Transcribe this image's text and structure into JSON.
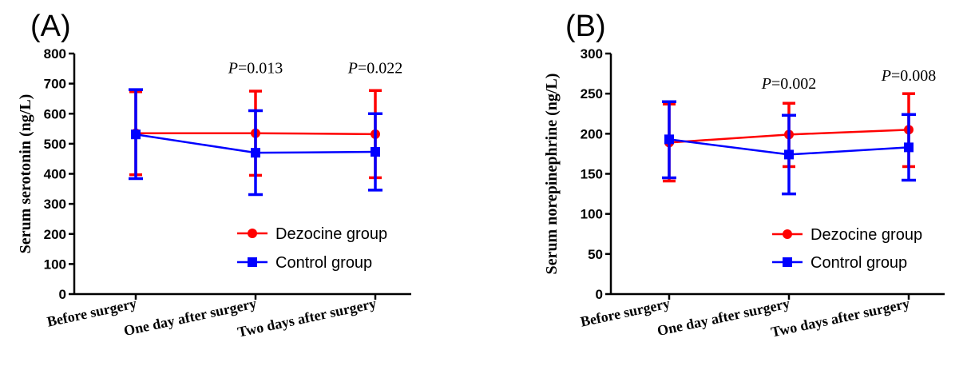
{
  "chart_data": [
    {
      "panel_label": "(A)",
      "type": "line",
      "ylabel": "Serum serotonin (ng/L)",
      "ylim": [
        0,
        800
      ],
      "yticks": [
        0,
        100,
        200,
        300,
        400,
        500,
        600,
        700,
        800
      ],
      "categories": [
        "Before surgery",
        "One day after surgery",
        "Two days after surgery"
      ],
      "series": [
        {
          "name": "Dezocine group",
          "color": "#ff0000",
          "marker": "circle",
          "values": [
            535,
            535,
            532
          ],
          "upper": [
            673,
            675,
            677
          ],
          "lower": [
            397,
            395,
            387
          ]
        },
        {
          "name": "Control group",
          "color": "#0000ff",
          "marker": "square",
          "values": [
            531,
            470,
            473
          ],
          "upper": [
            680,
            610,
            600
          ],
          "lower": [
            384,
            331,
            346
          ]
        }
      ],
      "annotations": [
        {
          "category_index": 1,
          "prefix": "P",
          "text": "=0.013",
          "y": 735
        },
        {
          "category_index": 2,
          "prefix": "P",
          "text": "=0.022",
          "y": 735
        }
      ],
      "legend": "bottom-right"
    },
    {
      "panel_label": "(B)",
      "type": "line",
      "ylabel": "Serum norepinephrine (ng/L)",
      "ylim": [
        0,
        300
      ],
      "yticks": [
        0,
        50,
        100,
        150,
        200,
        250,
        300
      ],
      "categories": [
        "Before surgery",
        "One day after surgery",
        "Two days after surgery"
      ],
      "series": [
        {
          "name": "Dezocine group",
          "color": "#ff0000",
          "marker": "circle",
          "values": [
            189,
            199,
            205
          ],
          "upper": [
            237,
            238,
            250
          ],
          "lower": [
            141,
            159,
            159
          ]
        },
        {
          "name": "Control group",
          "color": "#0000ff",
          "marker": "square",
          "values": [
            193,
            174,
            183
          ],
          "upper": [
            240,
            223,
            224
          ],
          "lower": [
            145,
            125,
            142
          ]
        }
      ],
      "annotations": [
        {
          "category_index": 1,
          "prefix": "P",
          "text": "=0.002",
          "y": 256
        },
        {
          "category_index": 2,
          "prefix": "P",
          "text": "=0.008",
          "y": 266
        }
      ],
      "legend": "bottom-right"
    }
  ]
}
